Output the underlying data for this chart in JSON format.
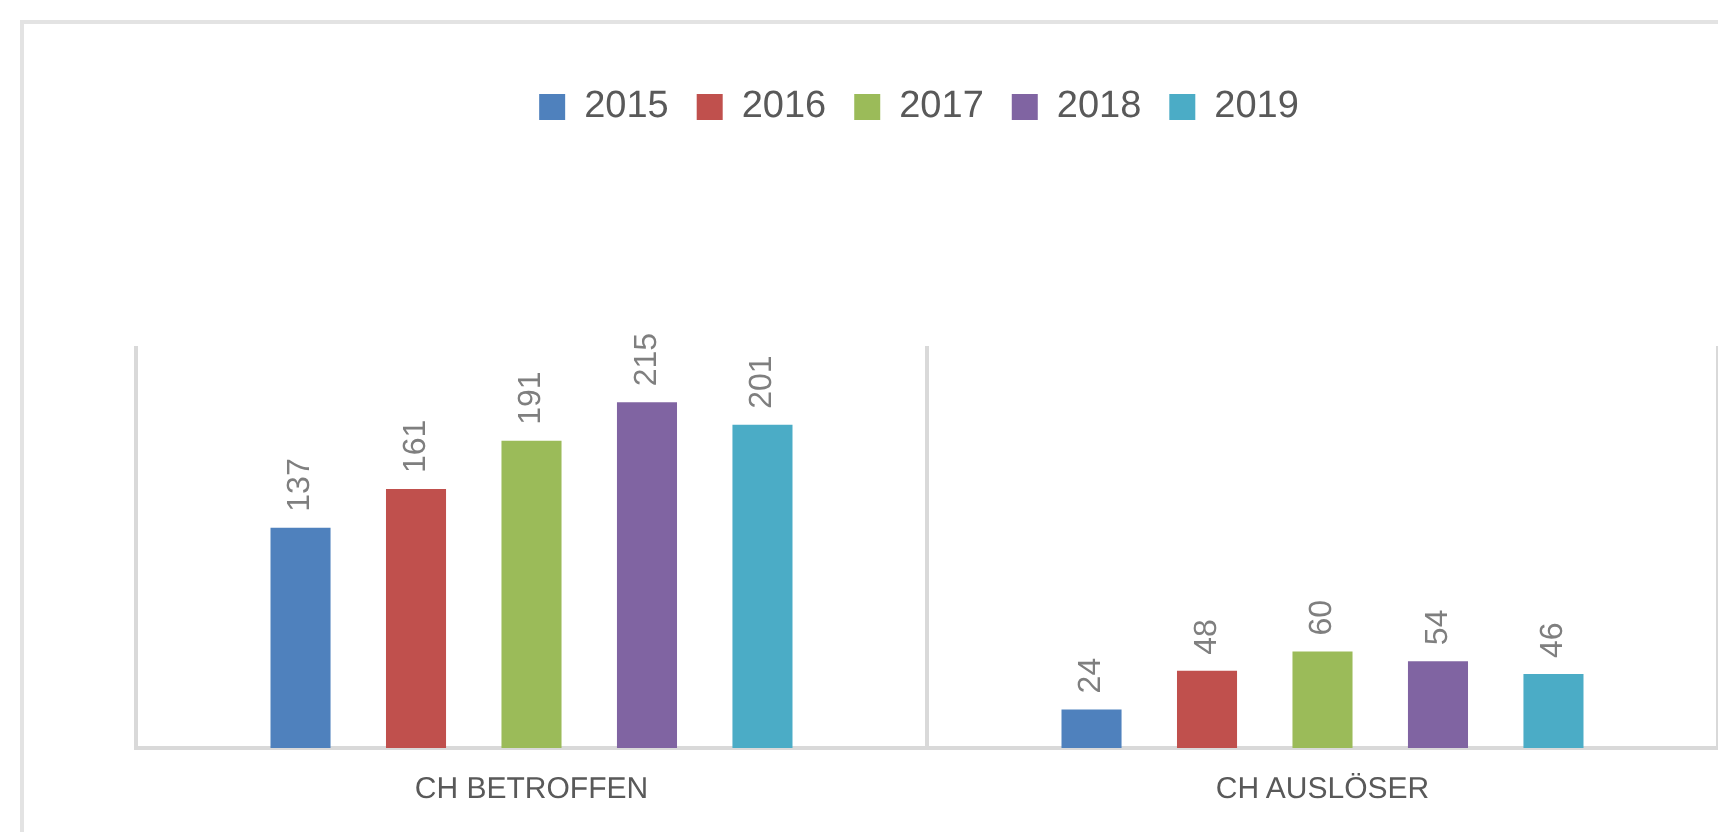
{
  "chart_data": {
    "type": "bar",
    "categories": [
      "CH BETROFFEN",
      "CH AUSLÖSER"
    ],
    "series": [
      {
        "name": "2015",
        "color": "#4f81bd",
        "values": [
          137,
          24
        ]
      },
      {
        "name": "2016",
        "color": "#c0504d",
        "values": [
          161,
          48
        ]
      },
      {
        "name": "2017",
        "color": "#9bbb59",
        "values": [
          191,
          60
        ]
      },
      {
        "name": "2018",
        "color": "#8064a2",
        "values": [
          215,
          54
        ]
      },
      {
        "name": "2019",
        "color": "#4bacc6",
        "values": [
          201,
          46
        ]
      }
    ],
    "data_labels": true,
    "grid": "x",
    "legend": "top"
  }
}
